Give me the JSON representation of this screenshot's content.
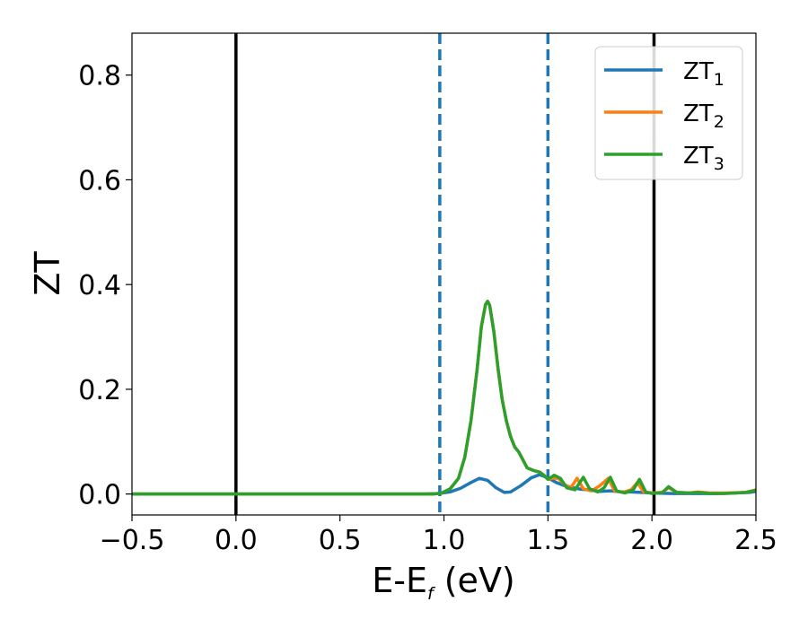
{
  "chart_data": {
    "type": "line",
    "xlabel": "E-E",
    "xlabel_sub": "f",
    "xlabel_unit": " (eV)",
    "ylabel": "ZT",
    "xlim": [
      -0.5,
      2.5
    ],
    "ylim": [
      -0.04,
      0.88
    ],
    "xticks": [
      -0.5,
      0.0,
      0.5,
      1.0,
      1.5,
      2.0,
      2.5
    ],
    "xtick_labels": [
      "−0.5",
      "0.0",
      "0.5",
      "1.0",
      "1.5",
      "2.0",
      "2.5"
    ],
    "yticks": [
      0.0,
      0.2,
      0.4,
      0.6,
      0.8
    ],
    "ytick_labels": [
      "0.0",
      "0.2",
      "0.4",
      "0.6",
      "0.8"
    ],
    "grid": false,
    "legend_position": "top-right",
    "vlines": [
      {
        "x": 0.0,
        "color": "#000000",
        "style": "solid"
      },
      {
        "x": 2.01,
        "color": "#000000",
        "style": "solid"
      },
      {
        "x": 0.98,
        "color": "#1f77b4",
        "style": "dashed"
      },
      {
        "x": 1.5,
        "color": "#1f77b4",
        "style": "dashed"
      }
    ],
    "series": [
      {
        "name": "ZT",
        "name_sub": "1",
        "color": "#1f77b4",
        "points": [
          [
            -0.5,
            0
          ],
          [
            0.9,
            0
          ],
          [
            0.98,
            0.001
          ],
          [
            1.03,
            0.004
          ],
          [
            1.08,
            0.011
          ],
          [
            1.13,
            0.022
          ],
          [
            1.17,
            0.03
          ],
          [
            1.21,
            0.026
          ],
          [
            1.25,
            0.012
          ],
          [
            1.29,
            0.003
          ],
          [
            1.32,
            0.004
          ],
          [
            1.37,
            0.016
          ],
          [
            1.42,
            0.031
          ],
          [
            1.46,
            0.037
          ],
          [
            1.5,
            0.031
          ],
          [
            1.54,
            0.022
          ],
          [
            1.58,
            0.016
          ],
          [
            1.62,
            0.012
          ],
          [
            1.66,
            0.009
          ],
          [
            1.7,
            0.008
          ],
          [
            1.75,
            0.005
          ],
          [
            1.8,
            0.006
          ],
          [
            1.85,
            0.004
          ],
          [
            1.9,
            0.004
          ],
          [
            1.95,
            0.003
          ],
          [
            2.0,
            0.002
          ],
          [
            2.1,
            0.001
          ],
          [
            2.2,
            0.001
          ],
          [
            2.3,
            0.001
          ],
          [
            2.4,
            0.002
          ],
          [
            2.47,
            0.003
          ],
          [
            2.5,
            0.005
          ]
        ]
      },
      {
        "name": "ZT",
        "name_sub": "2",
        "color": "#ff7f0e",
        "points": [
          [
            -0.5,
            0
          ],
          [
            0.95,
            0
          ],
          [
            0.99,
            0.002
          ],
          [
            1.03,
            0.01
          ],
          [
            1.07,
            0.03
          ],
          [
            1.1,
            0.07
          ],
          [
            1.13,
            0.14
          ],
          [
            1.16,
            0.24
          ],
          [
            1.18,
            0.32
          ],
          [
            1.2,
            0.362
          ],
          [
            1.21,
            0.368
          ],
          [
            1.22,
            0.36
          ],
          [
            1.24,
            0.31
          ],
          [
            1.26,
            0.24
          ],
          [
            1.28,
            0.18
          ],
          [
            1.3,
            0.14
          ],
          [
            1.32,
            0.11
          ],
          [
            1.34,
            0.09
          ],
          [
            1.36,
            0.08
          ],
          [
            1.38,
            0.065
          ],
          [
            1.4,
            0.05
          ],
          [
            1.43,
            0.045
          ],
          [
            1.46,
            0.042
          ],
          [
            1.48,
            0.036
          ],
          [
            1.5,
            0.028
          ],
          [
            1.52,
            0.03
          ],
          [
            1.55,
            0.03
          ],
          [
            1.58,
            0.018
          ],
          [
            1.61,
            0.012
          ],
          [
            1.64,
            0.03
          ],
          [
            1.67,
            0.01
          ],
          [
            1.71,
            0.006
          ],
          [
            1.75,
            0.016
          ],
          [
            1.79,
            0.03
          ],
          [
            1.82,
            0.006
          ],
          [
            1.86,
            0.003
          ],
          [
            1.9,
            0.008
          ],
          [
            1.93,
            0.022
          ],
          [
            1.96,
            0.004
          ],
          [
            2.0,
            0.002
          ],
          [
            2.05,
            0.003
          ],
          [
            2.08,
            0.012
          ],
          [
            2.12,
            0.003
          ],
          [
            2.18,
            0.002
          ],
          [
            2.22,
            0.004
          ],
          [
            2.28,
            0.002
          ],
          [
            2.35,
            0.002
          ],
          [
            2.45,
            0.003
          ],
          [
            2.5,
            0.008
          ]
        ]
      },
      {
        "name": "ZT",
        "name_sub": "3",
        "color": "#2ca02c",
        "points": [
          [
            -0.5,
            0
          ],
          [
            0.95,
            0
          ],
          [
            0.99,
            0.002
          ],
          [
            1.03,
            0.01
          ],
          [
            1.07,
            0.03
          ],
          [
            1.1,
            0.07
          ],
          [
            1.13,
            0.14
          ],
          [
            1.16,
            0.24
          ],
          [
            1.18,
            0.32
          ],
          [
            1.2,
            0.362
          ],
          [
            1.21,
            0.368
          ],
          [
            1.22,
            0.36
          ],
          [
            1.24,
            0.31
          ],
          [
            1.26,
            0.24
          ],
          [
            1.28,
            0.18
          ],
          [
            1.3,
            0.14
          ],
          [
            1.32,
            0.11
          ],
          [
            1.34,
            0.09
          ],
          [
            1.36,
            0.08
          ],
          [
            1.38,
            0.065
          ],
          [
            1.4,
            0.05
          ],
          [
            1.43,
            0.045
          ],
          [
            1.46,
            0.042
          ],
          [
            1.48,
            0.036
          ],
          [
            1.5,
            0.028
          ],
          [
            1.53,
            0.036
          ],
          [
            1.56,
            0.03
          ],
          [
            1.59,
            0.012
          ],
          [
            1.63,
            0.008
          ],
          [
            1.67,
            0.032
          ],
          [
            1.7,
            0.01
          ],
          [
            1.74,
            0.004
          ],
          [
            1.77,
            0.012
          ],
          [
            1.8,
            0.032
          ],
          [
            1.83,
            0.006
          ],
          [
            1.87,
            0.002
          ],
          [
            1.91,
            0.008
          ],
          [
            1.94,
            0.028
          ],
          [
            1.97,
            0.004
          ],
          [
            2.0,
            0.001
          ],
          [
            2.05,
            0.003
          ],
          [
            2.08,
            0.014
          ],
          [
            2.12,
            0.003
          ],
          [
            2.18,
            0.002
          ],
          [
            2.22,
            0.003
          ],
          [
            2.28,
            0.001
          ],
          [
            2.35,
            0.001
          ],
          [
            2.45,
            0.003
          ],
          [
            2.5,
            0.007
          ]
        ]
      }
    ]
  }
}
